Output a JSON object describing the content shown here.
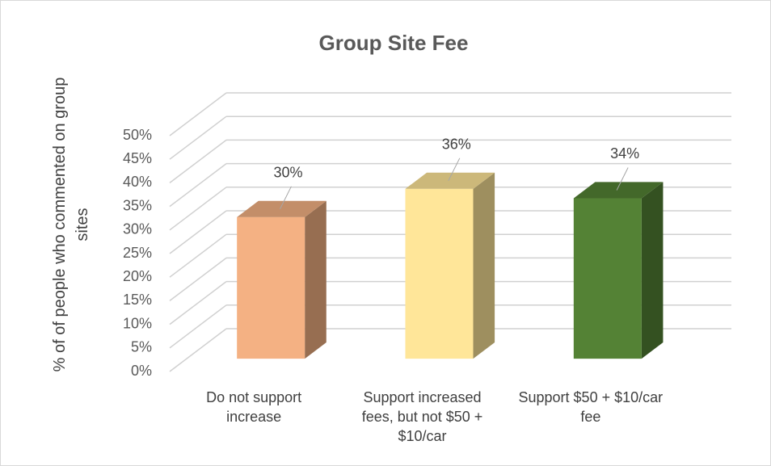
{
  "chart_data": {
    "type": "bar3d",
    "title": "Group Site Fee",
    "y_label": "% of of people  who commented on group sites",
    "categories": [
      "Do not support increase",
      "Support increased fees, but not $50 + $10/car",
      "Support $50 + $10/car fee"
    ],
    "values": [
      30,
      36,
      34
    ],
    "value_labels": [
      "30%",
      "36%",
      "34%"
    ],
    "colors": [
      "#f4b183",
      "#ffe699",
      "#548235"
    ],
    "ylim": [
      0,
      50
    ],
    "yticks": [
      {
        "value": 0,
        "label": "0%"
      },
      {
        "value": 5,
        "label": "5%"
      },
      {
        "value": 10,
        "label": "10%"
      },
      {
        "value": 15,
        "label": "15%"
      },
      {
        "value": 20,
        "label": "20%"
      },
      {
        "value": 25,
        "label": "25%"
      },
      {
        "value": 30,
        "label": "30%"
      },
      {
        "value": 35,
        "label": "35%"
      },
      {
        "value": 40,
        "label": "40%"
      },
      {
        "value": 45,
        "label": "45%"
      },
      {
        "value": 50,
        "label": "50%"
      }
    ],
    "grid": true
  }
}
